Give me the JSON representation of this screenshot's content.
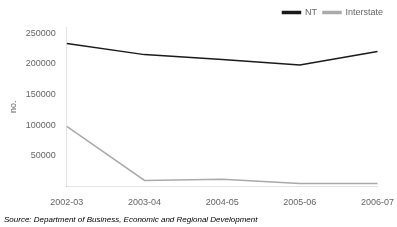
{
  "chart_data": {
    "type": "line",
    "categories": [
      "2002-03",
      "2003-04",
      "2004-05",
      "2005-06",
      "2006-07"
    ],
    "series": [
      {
        "name": "NT",
        "color": "#1a1a1a",
        "values": [
          233000,
          215000,
          207000,
          198000,
          220000
        ]
      },
      {
        "name": "Interstate",
        "color": "#aaaaaa",
        "values": [
          98000,
          10000,
          12000,
          5000,
          5000
        ]
      }
    ],
    "ylabel": "no.",
    "ylim": [
      0,
      260000
    ],
    "yticks": [
      50000,
      100000,
      150000,
      200000,
      250000
    ],
    "legend": "upper right",
    "grid": false,
    "annotations": [
      "Source: Department of Business, Economic and Regional Development"
    ]
  }
}
